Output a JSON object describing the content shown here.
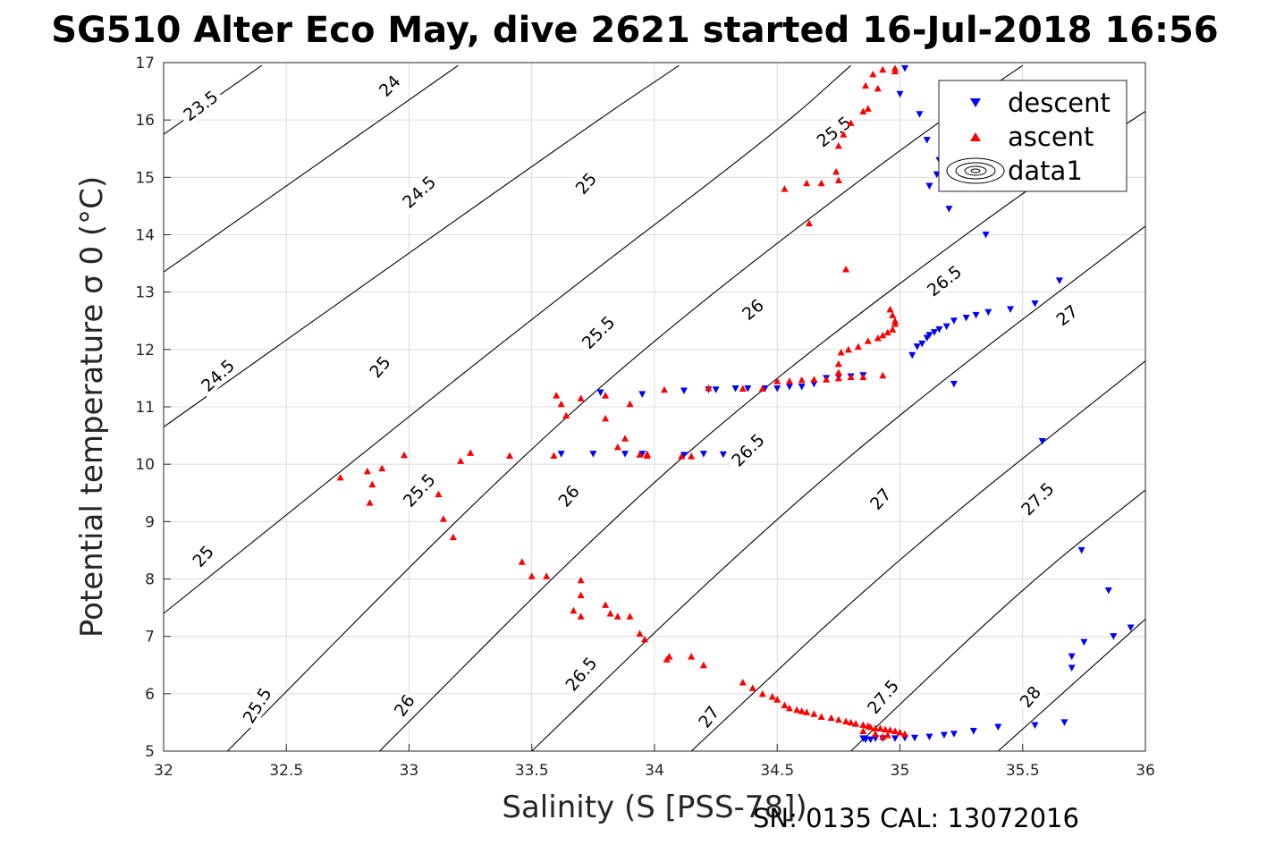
{
  "title": "SG510 Alter Eco May, dive 2621 started 16-Jul-2018 16:56",
  "footer": "SN: 0135  CAL: 13072016",
  "chart_data": {
    "type": "scatter",
    "title": "SG510 Alter Eco May, dive 2621 started 16-Jul-2018 16:56",
    "xlabel": "Salinity (S [PSS-78])",
    "ylabel": "Potential temperature σ 0 (°C)",
    "xlim": [
      32,
      36
    ],
    "ylim": [
      5,
      17
    ],
    "xticks": [
      "32",
      "32.5",
      "33",
      "33.5",
      "34",
      "34.5",
      "35",
      "35.5",
      "36"
    ],
    "yticks": [
      "5",
      "6",
      "7",
      "8",
      "9",
      "10",
      "11",
      "12",
      "13",
      "14",
      "15",
      "16",
      "17"
    ],
    "grid": true,
    "legend_position": "top-right",
    "legend": [
      "descent",
      "ascent",
      "data1"
    ],
    "colors": {
      "descent": "#0000ff",
      "ascent": "#ff0000",
      "contour": "#000000",
      "grid": "#dcdcdc"
    },
    "contours": [
      {
        "label": "23.5",
        "pts": [
          [
            32,
            15.75
          ],
          [
            32.4,
            16.95
          ]
        ]
      },
      {
        "label": "24",
        "pts": [
          [
            32,
            13.35
          ],
          [
            33.2,
            16.95
          ]
        ]
      },
      {
        "label": "24.5",
        "pts": [
          [
            32,
            10.65
          ],
          [
            33.7,
            15.8
          ],
          [
            34.1,
            16.95
          ]
        ]
      },
      {
        "label": "25",
        "pts": [
          [
            32,
            7.4
          ],
          [
            33.5,
            12.55
          ],
          [
            34.5,
            15.8
          ],
          [
            34.8,
            16.95
          ]
        ]
      },
      {
        "label": "25.5",
        "pts": [
          [
            32.26,
            5
          ],
          [
            33.3,
            9.5
          ],
          [
            34,
            12.2
          ],
          [
            35,
            15.5
          ],
          [
            35.5,
            16.95
          ]
        ]
      },
      {
        "label": "26",
        "pts": [
          [
            32.88,
            5
          ],
          [
            33.8,
            8.95
          ],
          [
            34.5,
            11.55
          ],
          [
            35.5,
            14.75
          ],
          [
            36,
            16.15
          ]
        ]
      },
      {
        "label": "26.5",
        "pts": [
          [
            33.5,
            5
          ],
          [
            34.3,
            8.3
          ],
          [
            35,
            10.9
          ],
          [
            36,
            14.15
          ]
        ]
      },
      {
        "label": "27",
        "pts": [
          [
            34.15,
            5
          ],
          [
            35,
            8.4
          ],
          [
            36,
            11.8
          ]
        ]
      },
      {
        "label": "27.5",
        "pts": [
          [
            34.8,
            5
          ],
          [
            35.5,
            7.85
          ],
          [
            36,
            9.55
          ]
        ]
      },
      {
        "label": "28",
        "pts": [
          [
            35.4,
            5
          ],
          [
            36,
            7.3
          ]
        ]
      }
    ],
    "contour_labels": [
      {
        "text": "23.5",
        "x": 32.15,
        "y": 16.25,
        "angle": -37
      },
      {
        "text": "24",
        "x": 32.92,
        "y": 16.6,
        "angle": -45
      },
      {
        "text": "24.5",
        "x": 33.04,
        "y": 14.75,
        "angle": -43
      },
      {
        "text": "25",
        "x": 33.72,
        "y": 14.9,
        "angle": -49
      },
      {
        "text": "24.5",
        "x": 32.22,
        "y": 11.55,
        "angle": -43
      },
      {
        "text": "25",
        "x": 32.88,
        "y": 11.7,
        "angle": -50
      },
      {
        "text": "25.5",
        "x": 33.77,
        "y": 12.3,
        "angle": -45
      },
      {
        "text": "25.5",
        "x": 34.73,
        "y": 15.8,
        "angle": -38
      },
      {
        "text": "26",
        "x": 34.4,
        "y": 12.7,
        "angle": -40
      },
      {
        "text": "26.5",
        "x": 35.18,
        "y": 13.2,
        "angle": -38
      },
      {
        "text": "27",
        "x": 35.68,
        "y": 12.6,
        "angle": -38
      },
      {
        "text": "25",
        "x": 32.16,
        "y": 8.4,
        "angle": -48
      },
      {
        "text": "25.5",
        "x": 33.04,
        "y": 9.55,
        "angle": -47
      },
      {
        "text": "26",
        "x": 33.65,
        "y": 9.45,
        "angle": -50
      },
      {
        "text": "26.5",
        "x": 34.38,
        "y": 10.25,
        "angle": -45
      },
      {
        "text": "27",
        "x": 34.92,
        "y": 9.4,
        "angle": -48
      },
      {
        "text": "27.5",
        "x": 35.56,
        "y": 9.4,
        "angle": -45
      },
      {
        "text": "25.5",
        "x": 32.38,
        "y": 5.8,
        "angle": -58
      },
      {
        "text": "26",
        "x": 32.98,
        "y": 5.8,
        "angle": -55
      },
      {
        "text": "26.5",
        "x": 33.7,
        "y": 6.35,
        "angle": -50
      },
      {
        "text": "27",
        "x": 34.22,
        "y": 5.6,
        "angle": -53
      },
      {
        "text": "27.5",
        "x": 34.93,
        "y": 5.95,
        "angle": -50
      },
      {
        "text": "28",
        "x": 35.53,
        "y": 5.95,
        "angle": -50
      }
    ],
    "descent": [
      [
        35.02,
        16.9
      ],
      [
        35.0,
        16.45
      ],
      [
        35.08,
        16.1
      ],
      [
        35.11,
        15.65
      ],
      [
        35.16,
        15.3
      ],
      [
        35.15,
        15.05
      ],
      [
        35.12,
        14.85
      ],
      [
        35.2,
        14.45
      ],
      [
        35.35,
        14.0
      ],
      [
        35.65,
        13.2
      ],
      [
        35.55,
        12.8
      ],
      [
        35.45,
        12.7
      ],
      [
        35.36,
        12.65
      ],
      [
        35.31,
        12.6
      ],
      [
        35.27,
        12.55
      ],
      [
        35.22,
        12.5
      ],
      [
        35.19,
        12.4
      ],
      [
        35.16,
        12.35
      ],
      [
        35.14,
        12.3
      ],
      [
        35.12,
        12.25
      ],
      [
        35.11,
        12.2
      ],
      [
        35.09,
        12.1
      ],
      [
        35.07,
        12.05
      ],
      [
        35.05,
        11.9
      ],
      [
        35.22,
        11.4
      ],
      [
        34.85,
        11.55
      ],
      [
        34.8,
        11.53
      ],
      [
        34.75,
        11.52
      ],
      [
        34.7,
        11.5
      ],
      [
        34.65,
        11.4
      ],
      [
        34.6,
        11.35
      ],
      [
        34.55,
        11.35
      ],
      [
        34.5,
        11.32
      ],
      [
        34.45,
        11.32
      ],
      [
        34.38,
        11.32
      ],
      [
        34.33,
        11.32
      ],
      [
        34.25,
        11.3
      ],
      [
        34.22,
        11.3
      ],
      [
        34.12,
        11.28
      ],
      [
        33.95,
        11.22
      ],
      [
        33.78,
        11.25
      ],
      [
        33.62,
        10.18
      ],
      [
        33.75,
        10.18
      ],
      [
        33.88,
        10.18
      ],
      [
        33.95,
        10.18
      ],
      [
        34.12,
        10.16
      ],
      [
        34.2,
        10.18
      ],
      [
        34.28,
        10.17
      ],
      [
        35.58,
        10.4
      ],
      [
        35.74,
        8.5
      ],
      [
        35.85,
        7.8
      ],
      [
        35.94,
        7.15
      ],
      [
        35.87,
        7.0
      ],
      [
        35.75,
        6.9
      ],
      [
        35.7,
        6.65
      ],
      [
        35.7,
        6.45
      ],
      [
        35.67,
        5.5
      ],
      [
        35.55,
        5.45
      ],
      [
        35.4,
        5.42
      ],
      [
        35.3,
        5.35
      ],
      [
        35.22,
        5.3
      ],
      [
        35.18,
        5.28
      ],
      [
        35.12,
        5.25
      ],
      [
        35.06,
        5.23
      ],
      [
        35.02,
        5.23
      ],
      [
        34.98,
        5.22
      ],
      [
        34.93,
        5.22
      ],
      [
        34.9,
        5.22
      ],
      [
        34.88,
        5.2
      ],
      [
        34.86,
        5.2
      ],
      [
        34.85,
        5.22
      ]
    ],
    "ascent": [
      [
        34.98,
        16.9
      ],
      [
        34.93,
        16.88
      ],
      [
        34.89,
        16.8
      ],
      [
        34.86,
        16.6
      ],
      [
        34.91,
        16.55
      ],
      [
        34.98,
        16.85
      ],
      [
        34.87,
        16.2
      ],
      [
        34.85,
        16.15
      ],
      [
        34.8,
        15.95
      ],
      [
        34.77,
        15.75
      ],
      [
        34.75,
        15.55
      ],
      [
        34.68,
        14.9
      ],
      [
        34.53,
        14.8
      ],
      [
        34.62,
        14.9
      ],
      [
        34.74,
        15.1
      ],
      [
        34.75,
        14.95
      ],
      [
        34.63,
        14.2
      ],
      [
        34.78,
        13.4
      ],
      [
        34.96,
        12.7
      ],
      [
        34.97,
        12.6
      ],
      [
        34.98,
        12.5
      ],
      [
        34.98,
        12.45
      ],
      [
        34.97,
        12.35
      ],
      [
        34.95,
        12.3
      ],
      [
        34.93,
        12.25
      ],
      [
        34.91,
        12.2
      ],
      [
        34.87,
        12.15
      ],
      [
        34.83,
        12.05
      ],
      [
        34.79,
        12.0
      ],
      [
        34.76,
        11.95
      ],
      [
        34.75,
        11.75
      ],
      [
        34.75,
        11.6
      ],
      [
        34.93,
        11.55
      ],
      [
        34.85,
        11.52
      ],
      [
        34.8,
        11.52
      ],
      [
        34.75,
        11.5
      ],
      [
        34.7,
        11.48
      ],
      [
        34.65,
        11.48
      ],
      [
        34.6,
        11.47
      ],
      [
        34.55,
        11.45
      ],
      [
        34.5,
        11.45
      ],
      [
        34.44,
        11.32
      ],
      [
        34.36,
        11.32
      ],
      [
        34.22,
        11.33
      ],
      [
        34.04,
        11.3
      ],
      [
        33.9,
        11.05
      ],
      [
        33.8,
        11.2
      ],
      [
        33.7,
        11.15
      ],
      [
        33.6,
        11.2
      ],
      [
        33.62,
        11.05
      ],
      [
        33.64,
        10.85
      ],
      [
        33.8,
        10.8
      ],
      [
        33.85,
        10.3
      ],
      [
        33.88,
        10.45
      ],
      [
        33.94,
        10.17
      ],
      [
        33.97,
        10.18
      ],
      [
        34.11,
        10.14
      ],
      [
        34.15,
        10.14
      ],
      [
        33.97,
        10.15
      ],
      [
        33.59,
        10.15
      ],
      [
        33.41,
        10.15
      ],
      [
        33.25,
        10.2
      ],
      [
        33.21,
        10.06
      ],
      [
        32.98,
        10.16
      ],
      [
        32.89,
        9.93
      ],
      [
        32.83,
        9.88
      ],
      [
        32.72,
        9.77
      ],
      [
        32.85,
        9.65
      ],
      [
        32.84,
        9.33
      ],
      [
        33.12,
        9.48
      ],
      [
        33.14,
        9.05
      ],
      [
        33.18,
        8.73
      ],
      [
        33.46,
        8.3
      ],
      [
        33.5,
        8.05
      ],
      [
        33.56,
        8.05
      ],
      [
        33.7,
        7.98
      ],
      [
        33.7,
        7.72
      ],
      [
        33.67,
        7.45
      ],
      [
        33.7,
        7.35
      ],
      [
        33.8,
        7.55
      ],
      [
        33.82,
        7.4
      ],
      [
        33.85,
        7.35
      ],
      [
        33.9,
        7.35
      ],
      [
        33.94,
        7.05
      ],
      [
        33.96,
        6.95
      ],
      [
        34.06,
        6.65
      ],
      [
        34.05,
        6.6
      ],
      [
        34.15,
        6.65
      ],
      [
        34.2,
        6.5
      ],
      [
        34.36,
        6.2
      ],
      [
        34.4,
        6.1
      ],
      [
        34.44,
        6.0
      ],
      [
        34.48,
        5.95
      ],
      [
        34.5,
        5.9
      ],
      [
        34.53,
        5.8
      ],
      [
        34.55,
        5.75
      ],
      [
        34.58,
        5.72
      ],
      [
        34.6,
        5.7
      ],
      [
        34.62,
        5.68
      ],
      [
        34.65,
        5.65
      ],
      [
        34.68,
        5.6
      ],
      [
        34.72,
        5.58
      ],
      [
        34.75,
        5.55
      ],
      [
        34.78,
        5.52
      ],
      [
        34.8,
        5.5
      ],
      [
        34.82,
        5.48
      ],
      [
        34.85,
        5.46
      ],
      [
        34.87,
        5.44
      ],
      [
        34.88,
        5.42
      ],
      [
        34.9,
        5.4
      ],
      [
        34.92,
        5.4
      ],
      [
        34.94,
        5.38
      ],
      [
        34.96,
        5.37
      ],
      [
        34.98,
        5.35
      ],
      [
        35.0,
        5.33
      ],
      [
        35.02,
        5.3
      ],
      [
        34.85,
        5.35
      ],
      [
        34.9,
        5.3
      ],
      [
        34.95,
        5.28
      ],
      [
        34.93,
        5.25
      ]
    ]
  }
}
